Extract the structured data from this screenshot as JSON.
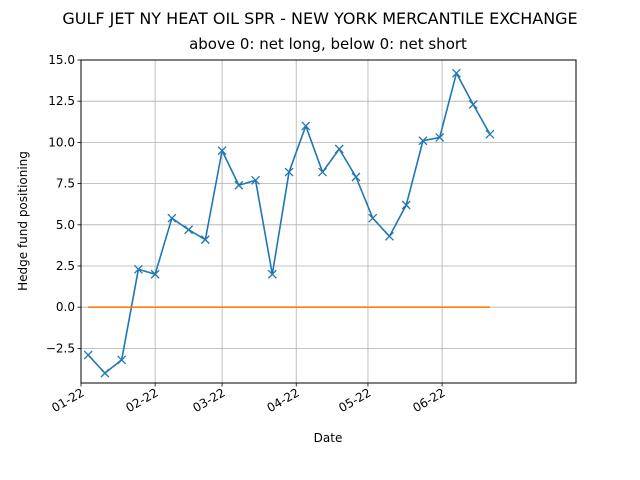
{
  "chart_data": {
    "type": "line",
    "title": "GULF JET NY HEAT OIL SPR - NEW YORK MERCANTILE EXCHANGE",
    "subtitle": "above 0: net long, below 0: net short",
    "xlabel": "Date",
    "ylabel": "Hedge fund positioning",
    "ylim": [
      -4.6,
      15.0
    ],
    "yticks": [
      -2.5,
      0.0,
      2.5,
      5.0,
      7.5,
      10.0,
      12.5,
      15.0
    ],
    "ytick_labels": [
      "−2.5",
      "0.0",
      "2.5",
      "5.0",
      "7.5",
      "10.0",
      "12.5",
      "15.0"
    ],
    "xlim": [
      "2022-01-01",
      "2022-07-27"
    ],
    "xticks": [
      "2022-01-01",
      "2022-02-01",
      "2022-03-01",
      "2022-04-01",
      "2022-05-01",
      "2022-06-01"
    ],
    "xtick_labels": [
      "01-22",
      "02-22",
      "03-22",
      "04-22",
      "05-22",
      "06-22"
    ],
    "grid": true,
    "series": [
      {
        "color": "#1f77b4",
        "marker": "x",
        "x": [
          "2022-01-04",
          "2022-01-11",
          "2022-01-18",
          "2022-01-25",
          "2022-02-01",
          "2022-02-08",
          "2022-02-15",
          "2022-02-22",
          "2022-03-01",
          "2022-03-08",
          "2022-03-15",
          "2022-03-22",
          "2022-03-29",
          "2022-04-05",
          "2022-04-12",
          "2022-04-19",
          "2022-04-26",
          "2022-05-03",
          "2022-05-10",
          "2022-05-17",
          "2022-05-24",
          "2022-05-31",
          "2022-06-07",
          "2022-06-14",
          "2022-06-21"
        ],
        "y": [
          -2.9,
          -4.0,
          -3.2,
          2.3,
          2.0,
          5.4,
          4.7,
          4.1,
          9.5,
          7.4,
          7.7,
          2.0,
          8.2,
          11.0,
          8.2,
          9.6,
          7.9,
          5.4,
          4.3,
          6.2,
          10.1,
          10.3,
          14.2,
          12.3,
          10.5
        ]
      },
      {
        "color": "#ff7f0e",
        "marker": "none",
        "x": [
          "2022-01-04",
          "2022-06-21"
        ],
        "y": [
          0.0,
          0.0
        ]
      }
    ]
  }
}
